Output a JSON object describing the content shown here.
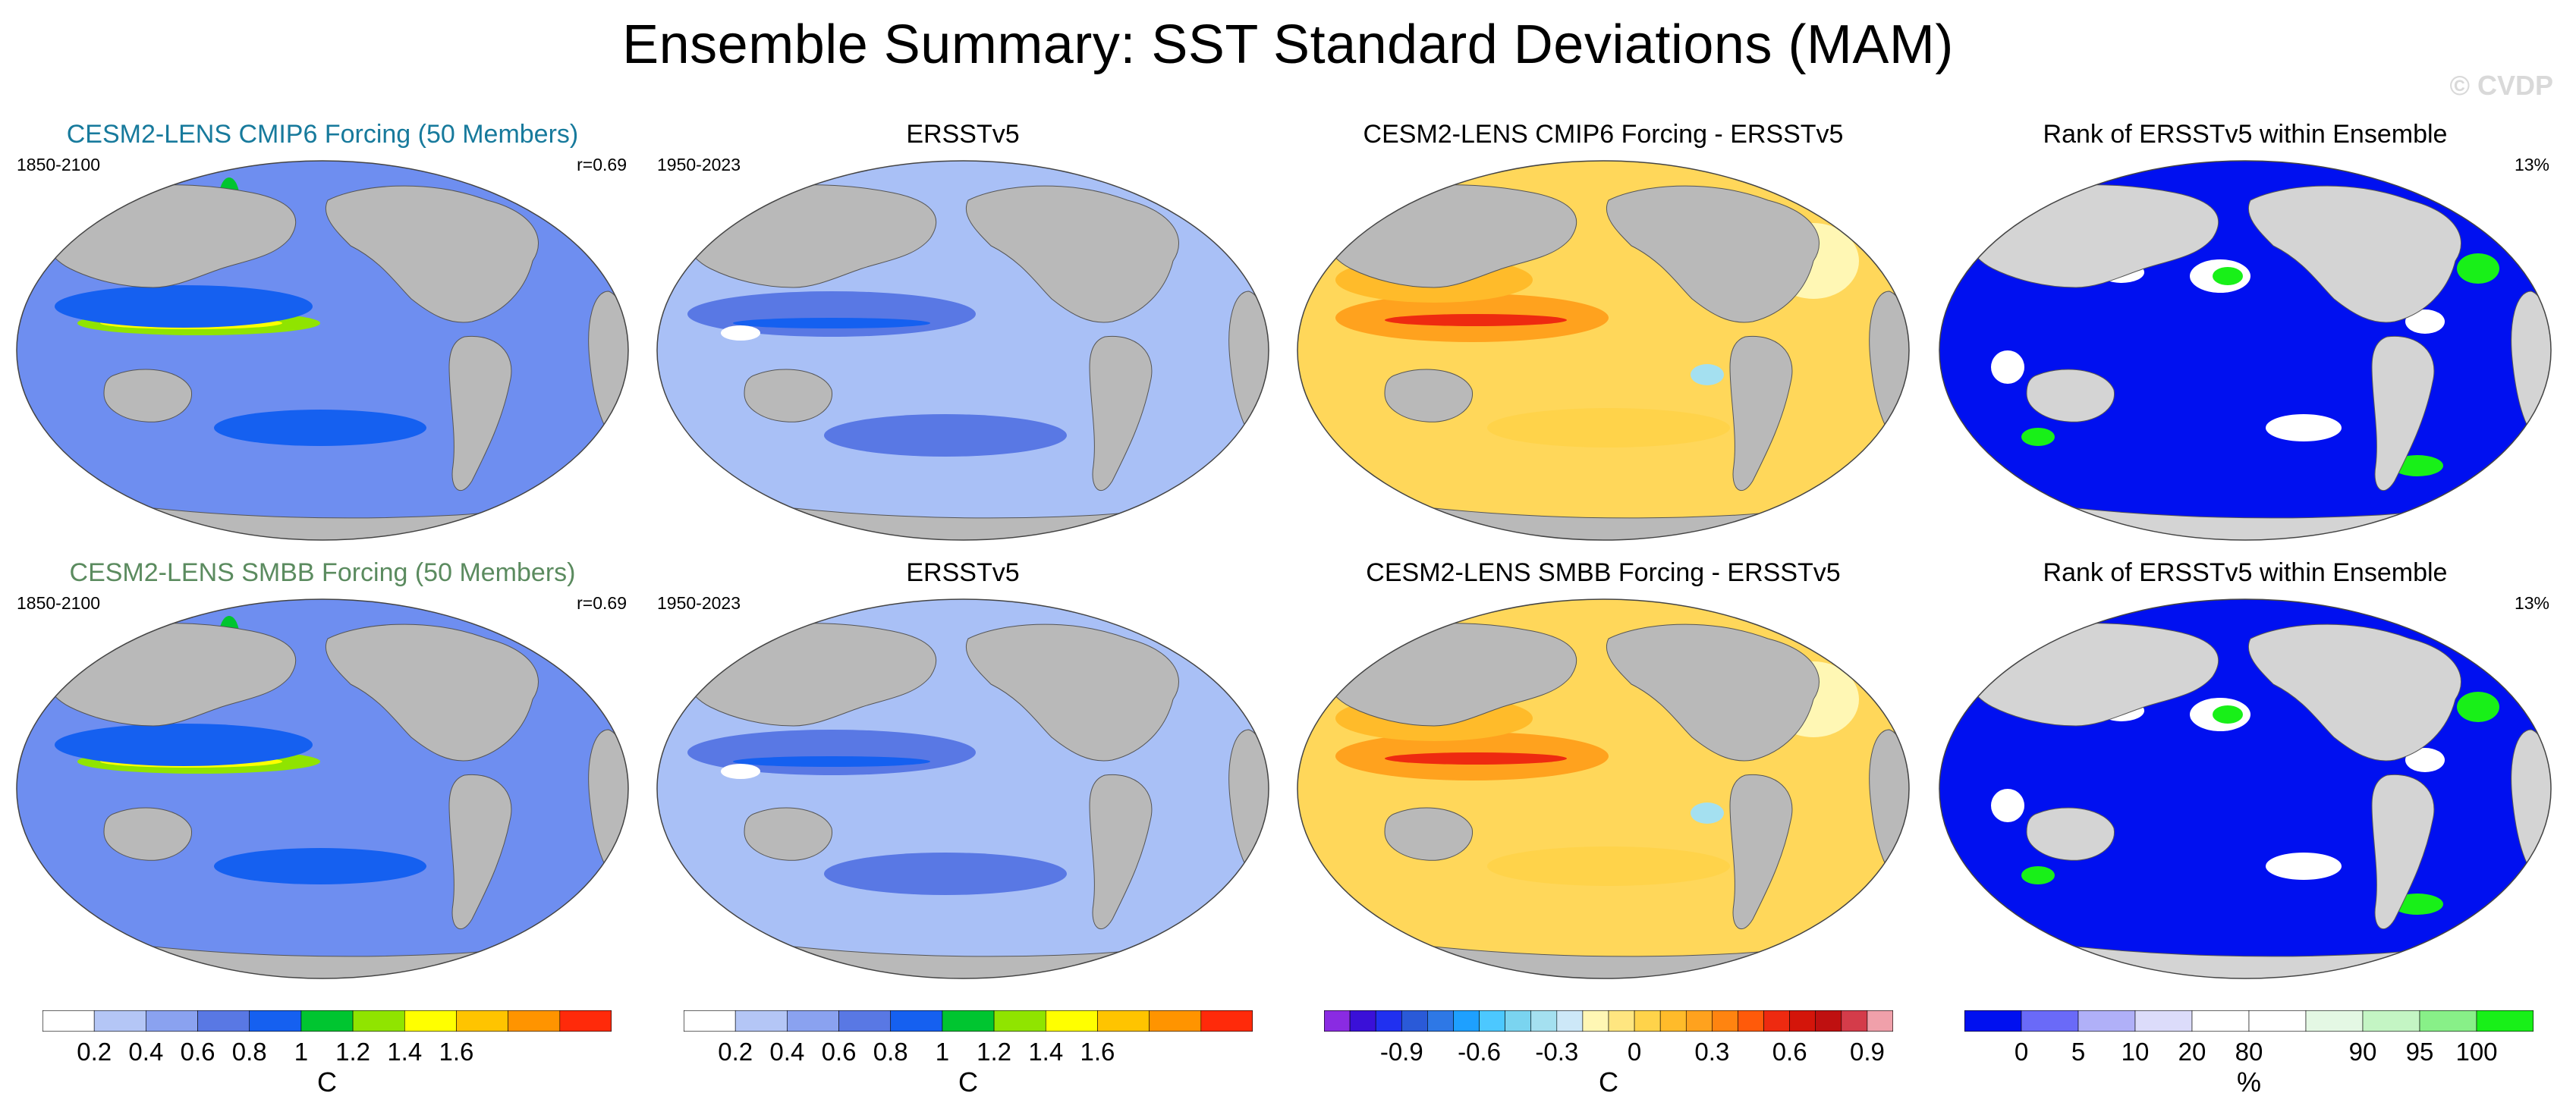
{
  "title": "Ensemble Summary: SST Standard Deviations (MAM)",
  "watermark": "© CVDP",
  "colors": {
    "land": "#b9b9b9",
    "cmip6_title": "#177a9c",
    "smbb_title": "#5b8b5f"
  },
  "panels": [
    {
      "id": "r1c1",
      "kind": "sd_model",
      "title": "CESM2-LENS CMIP6 Forcing (50 Members)",
      "title_color": "#177a9c",
      "left": "1850-2100",
      "right": "r=0.69"
    },
    {
      "id": "r1c2",
      "kind": "sd_obs",
      "title": "ERSSTv5",
      "title_color": "#000000",
      "left": "1950-2023",
      "right": ""
    },
    {
      "id": "r1c3",
      "kind": "diff",
      "title": "CESM2-LENS CMIP6 Forcing - ERSSTv5",
      "title_color": "#000000",
      "left": "",
      "right": ""
    },
    {
      "id": "r1c4",
      "kind": "rank",
      "title": "Rank of ERSSTv5 within Ensemble",
      "title_color": "#000000",
      "left": "",
      "right": "13%"
    },
    {
      "id": "r2c1",
      "kind": "sd_model",
      "title": "CESM2-LENS SMBB Forcing (50 Members)",
      "title_color": "#5b8b5f",
      "left": "1850-2100",
      "right": "r=0.69"
    },
    {
      "id": "r2c2",
      "kind": "sd_obs",
      "title": "ERSSTv5",
      "title_color": "#000000",
      "left": "1950-2023",
      "right": ""
    },
    {
      "id": "r2c3",
      "kind": "diff",
      "title": "CESM2-LENS SMBB Forcing - ERSSTv5",
      "title_color": "#000000",
      "left": "",
      "right": ""
    },
    {
      "id": "r2c4",
      "kind": "rank",
      "title": "Rank of ERSSTv5 within Ensemble",
      "title_color": "#000000",
      "left": "",
      "right": "13%"
    }
  ],
  "colorbars": {
    "sd": {
      "unit": "C",
      "colors": [
        "#ffffff",
        "#b4c6f6",
        "#8aa2f0",
        "#5978e4",
        "#1560f0",
        "#00c530",
        "#90e400",
        "#ffff00",
        "#ffc400",
        "#ff9400",
        "#ff2a0a"
      ],
      "ticks": [
        "0.2",
        "0.4",
        "0.6",
        "0.8",
        "1",
        "1.2",
        "1.4",
        "1.6"
      ]
    },
    "diff": {
      "unit": "C",
      "colors": [
        "#8a2be2",
        "#3a10d8",
        "#2030f0",
        "#2a5ad8",
        "#2e78e6",
        "#1ea0ff",
        "#4cc8ff",
        "#7ad4f0",
        "#a4e0f0",
        "#cde8f8",
        "#fff7b4",
        "#ffe680",
        "#ffd34a",
        "#ffbb2a",
        "#ffa21e",
        "#ff8410",
        "#ff5a0a",
        "#ee2a10",
        "#d4150a",
        "#bf1010",
        "#d43c4a",
        "#f0a0aa"
      ],
      "ticks": [
        "-0.9",
        "-0.6",
        "-0.3",
        "0",
        "0.3",
        "0.6",
        "0.9"
      ]
    },
    "rank": {
      "unit": "%",
      "colors": [
        "#0010f0",
        "#6a6af8",
        "#b0b0f8",
        "#dcdcfa",
        "#ffffff",
        "#ffffff",
        "#e4f8e4",
        "#c4f5c4",
        "#88f088",
        "#18f018"
      ],
      "ticks": [
        "0",
        "5",
        "10",
        "20",
        "80",
        "90",
        "95",
        "100"
      ]
    }
  }
}
